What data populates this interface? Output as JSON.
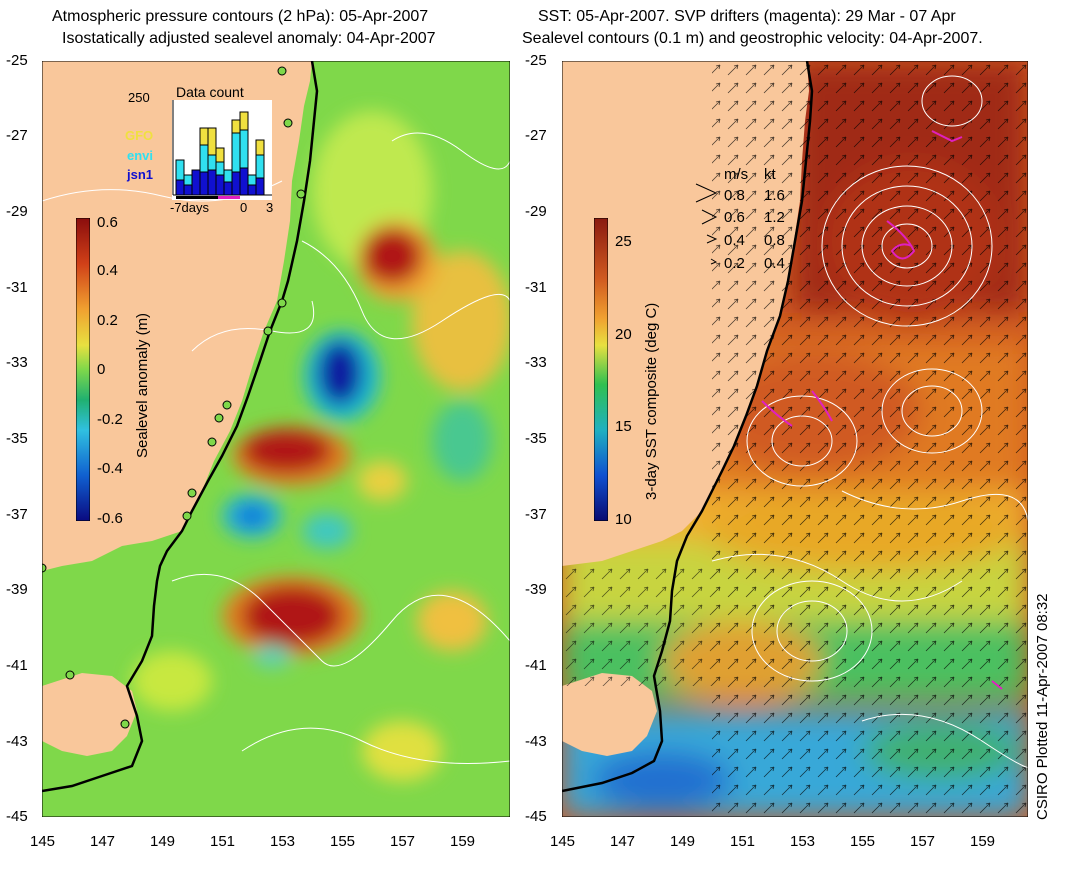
{
  "left_panel": {
    "title_line1": "Atmospheric pressure contours (2 hPa): 05-Apr-2007",
    "title_line2": "Isostatically adjusted sealevel anomaly: 04-Apr-2007",
    "colorbar": {
      "label": "Sealevel anomaly (m)",
      "ticks": [
        "0.6",
        "0.4",
        "0.2",
        "0",
        "-0.2",
        "-0.4",
        "-0.6"
      ]
    },
    "inset": {
      "title": "Data count",
      "ymax_label": "250",
      "x_labels": [
        "-7days",
        "0",
        "3"
      ],
      "legend": [
        {
          "name": "GFO",
          "color": "#f0e040"
        },
        {
          "name": "envi",
          "color": "#30e0f0"
        },
        {
          "name": "jsn1",
          "color": "#1010d0"
        }
      ]
    }
  },
  "right_panel": {
    "title_line1": "SST: 05-Apr-2007. SVP drifters (magenta): 29 Mar - 07 Apr",
    "title_line2": "Sealevel contours (0.1 m) and geostrophic velocity: 04-Apr-2007.",
    "colorbar": {
      "label": "3-day SST composite (deg C)",
      "ticks": [
        "25",
        "20",
        "15",
        "10"
      ]
    },
    "velocity_legend": {
      "header_ms": "m/s",
      "header_kt": "kt",
      "rows": [
        {
          "ms": "0.8",
          "kt": "1.6"
        },
        {
          "ms": "0.6",
          "kt": "1.2"
        },
        {
          "ms": "0.4",
          "kt": "0.8"
        },
        {
          "ms": "0.2",
          "kt": "0.4"
        }
      ]
    }
  },
  "y_ticks": [
    "-25",
    "-27",
    "-29",
    "-31",
    "-33",
    "-35",
    "-37",
    "-39",
    "-41",
    "-43",
    "-45"
  ],
  "x_ticks": [
    "145",
    "147",
    "149",
    "151",
    "153",
    "155",
    "157",
    "159"
  ],
  "credit": "CSIRO Plotted 11-Apr-2007 08:32",
  "colors": {
    "land": "#f9c79b",
    "coast": "#000000",
    "contour": "#ffffff",
    "drifter": "#e020c0"
  }
}
